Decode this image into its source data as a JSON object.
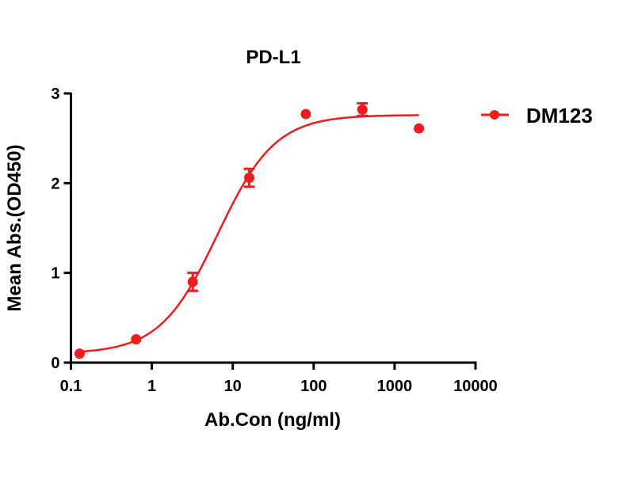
{
  "chart_data": {
    "type": "scatter",
    "title": "PD-L1",
    "xlabel": "Ab.Con (ng/ml)",
    "ylabel": "Mean Abs.(OD450)",
    "x_scale": "log",
    "xlim": [
      0.1,
      10000
    ],
    "ylim": [
      0,
      3
    ],
    "x_ticks": [
      0.1,
      1,
      10,
      100,
      1000,
      10000
    ],
    "x_tick_labels": [
      "0.1",
      "1",
      "10",
      "100",
      "1000",
      "10000"
    ],
    "y_ticks": [
      0,
      1,
      2,
      3
    ],
    "y_tick_labels": [
      "0",
      "1",
      "2",
      "3"
    ],
    "grid": false,
    "legend_position": "right",
    "series": [
      {
        "name": "DM123",
        "color": "#ee1c1c",
        "x": [
          0.128,
          0.64,
          3.2,
          16,
          80,
          400,
          2000
        ],
        "y": [
          0.1,
          0.26,
          0.9,
          2.06,
          2.77,
          2.82,
          2.61
        ],
        "error": [
          0.01,
          0.01,
          0.1,
          0.1,
          0.01,
          0.07,
          0.01
        ],
        "fit": {
          "model": "4PL",
          "bottom": 0.1,
          "top": 2.76,
          "ec50": 6.5,
          "hill": 1.22
        }
      }
    ]
  }
}
